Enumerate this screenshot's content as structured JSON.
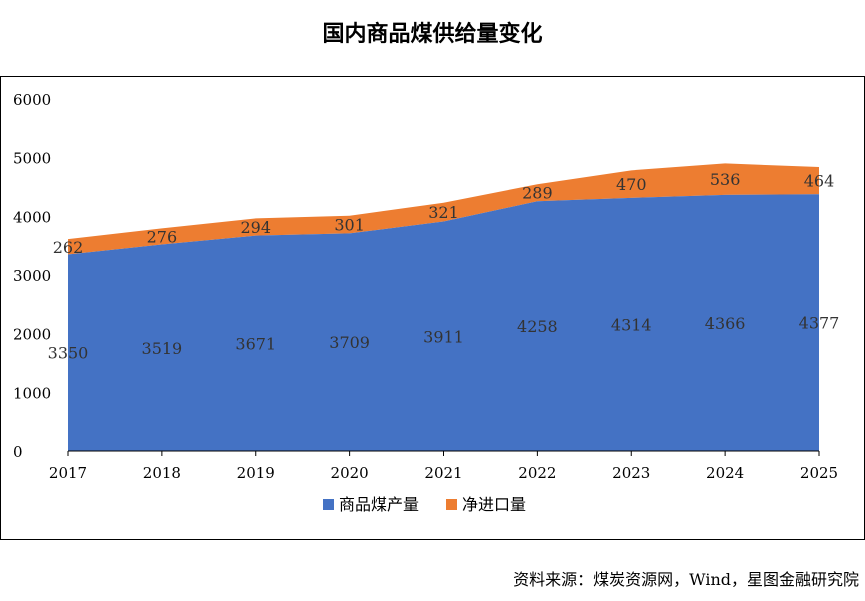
{
  "title": "国内商品煤供给量变化",
  "source": "资料来源：煤炭资源网，Wind，星图金融研究院",
  "chart_data": {
    "type": "area",
    "stacked": true,
    "x": [
      "2017",
      "2018",
      "2019",
      "2020",
      "2021",
      "2022",
      "2023",
      "2024",
      "2025"
    ],
    "series": [
      {
        "name": "商品煤产量",
        "color": "#4472C4",
        "values": [
          3350,
          3519,
          3671,
          3709,
          3911,
          4258,
          4314,
          4366,
          4377
        ]
      },
      {
        "name": "净进口量",
        "color": "#ED7D31",
        "values": [
          262,
          276,
          294,
          301,
          321,
          289,
          470,
          536,
          464
        ]
      }
    ],
    "yticks": [
      0,
      1000,
      2000,
      3000,
      4000,
      5000,
      6000
    ],
    "ylim": [
      0,
      6000
    ],
    "legend": "bottom",
    "grid": false
  }
}
